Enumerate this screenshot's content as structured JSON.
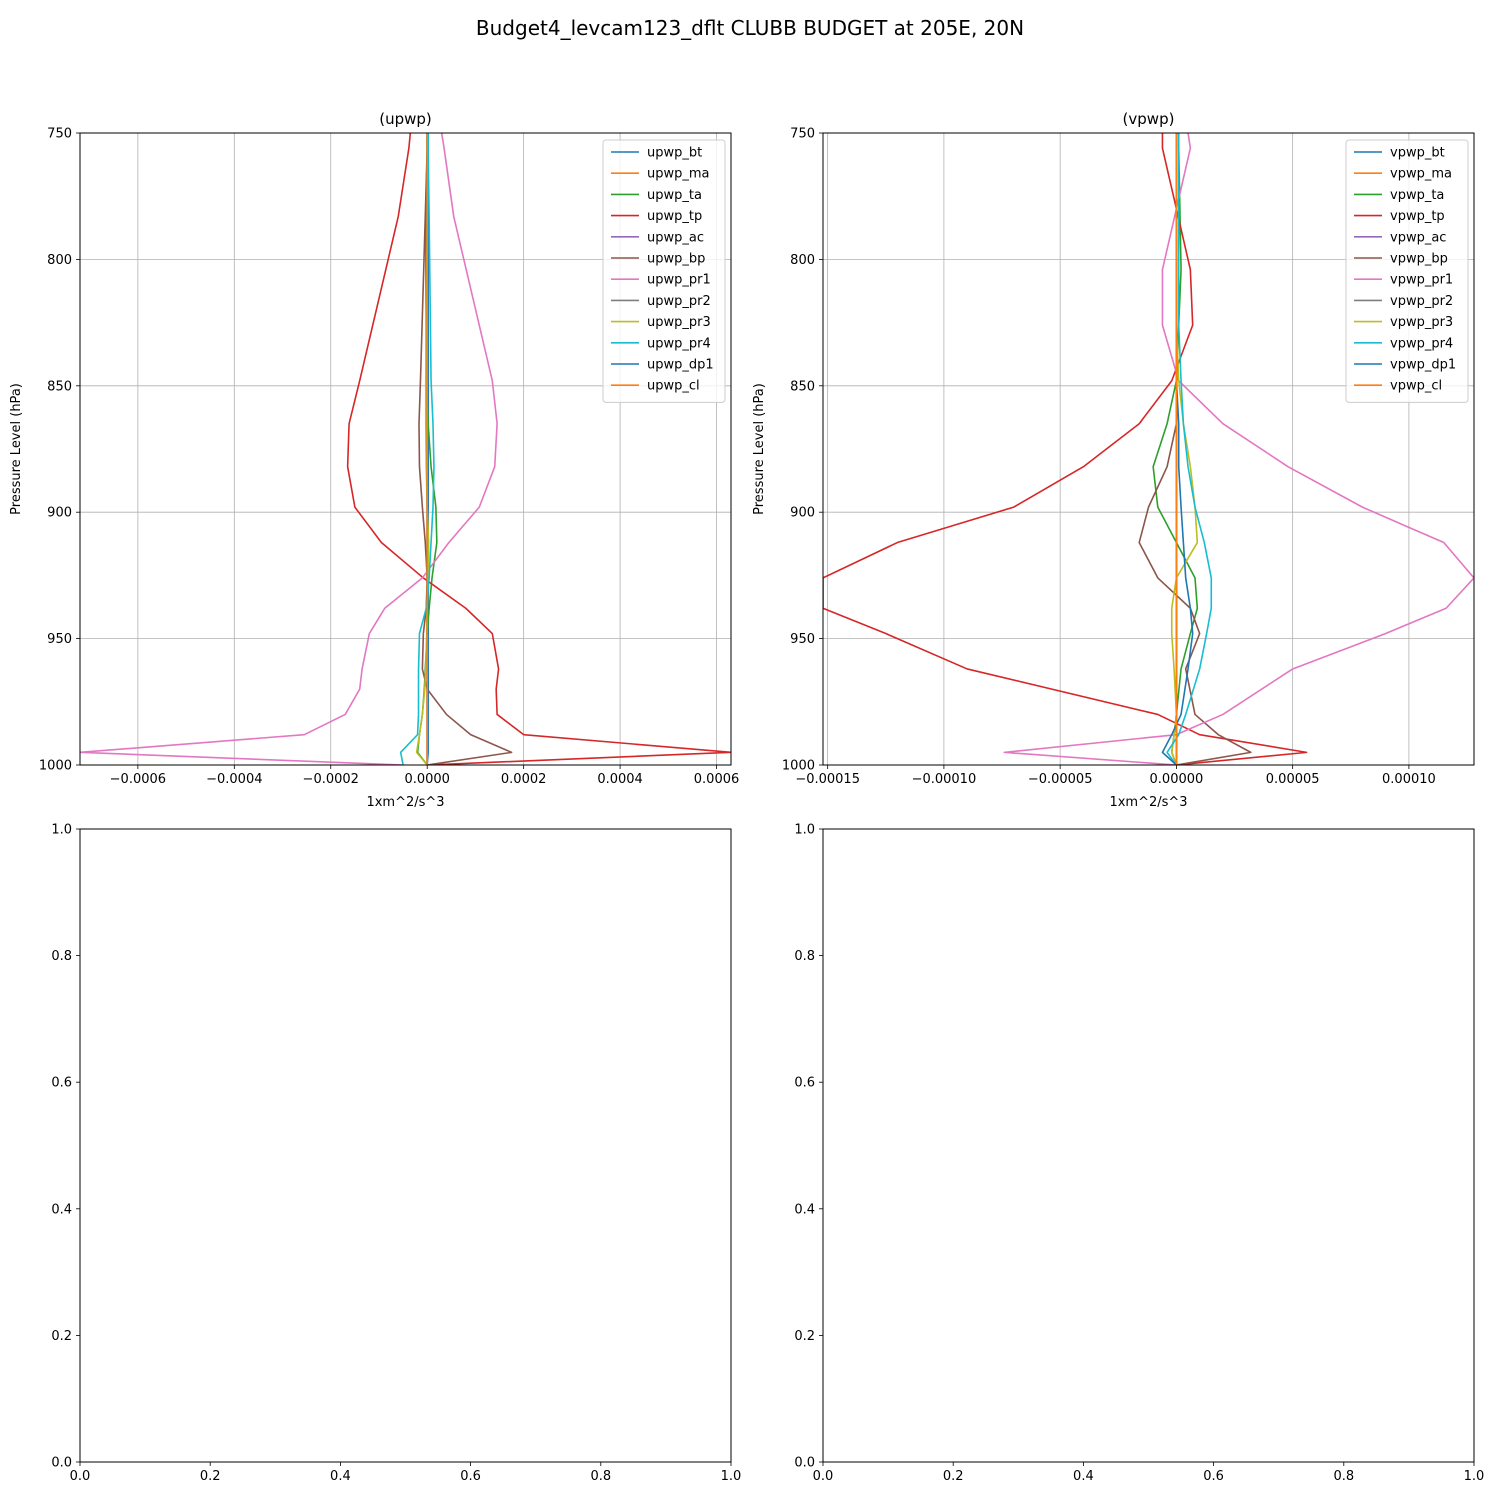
{
  "figure": {
    "suptitle": "Budget4_levcam123_dflt CLUBB BUDGET at 205E, 20N"
  },
  "colors": {
    "bt": "#1f77b4",
    "ma": "#ff7f0e",
    "ta": "#2ca02c",
    "tp": "#d62728",
    "ac": "#9467bd",
    "bp": "#8c564b",
    "pr1": "#e377c2",
    "pr2": "#7f7f7f",
    "pr3": "#bcbd22",
    "pr4": "#17becf",
    "dp1": "#1f77b4",
    "cl": "#ff7f0e"
  },
  "chart_data": [
    {
      "type": "line",
      "title": "(upwp)",
      "xlabel": "1xm^2/s^3",
      "ylabel": "Pressure Level (hPa)",
      "xlim": [
        -0.00072,
        0.00063
      ],
      "ylim": [
        1000,
        750
      ],
      "y_inverted": true,
      "xticks": [
        -0.0006,
        -0.0004,
        -0.0002,
        0.0,
        0.0002,
        0.0004,
        0.0006
      ],
      "xtick_labels": [
        "−0.0006",
        "−0.0004",
        "−0.0002",
        "0.0000",
        "0.0002",
        "0.0004",
        "0.0006"
      ],
      "yticks": [
        750,
        800,
        850,
        900,
        950,
        1000
      ],
      "ytick_labels": [
        "750",
        "800",
        "850",
        "900",
        "950",
        "1000"
      ],
      "grid": true,
      "legend_position": "top-right",
      "y": [
        750,
        756,
        783,
        848,
        865,
        882,
        898,
        912,
        926,
        938,
        948,
        962,
        970,
        980,
        988,
        995,
        1000
      ],
      "series": [
        {
          "name": "upwp_bt",
          "key": "bt",
          "values": [
            2e-06,
            2e-06,
            2e-06,
            2e-06,
            2e-06,
            2e-06,
            2e-06,
            2e-06,
            2e-06,
            2e-06,
            2e-06,
            2e-06,
            2e-06,
            2e-06,
            2e-06,
            2e-06,
            0.0
          ]
        },
        {
          "name": "upwp_ma",
          "key": "ma",
          "values": [
            0.0,
            0.0,
            0.0,
            0.0,
            0.0,
            0.0,
            0.0,
            0.0,
            0.0,
            0.0,
            0.0,
            0.0,
            0.0,
            0.0,
            0.0,
            0.0,
            0.0
          ]
        },
        {
          "name": "upwp_ta",
          "key": "ta",
          "values": [
            0.0,
            0.0,
            -3e-06,
            -2e-06,
            2e-06,
            8e-06,
            1.8e-05,
            2e-05,
            1e-05,
            4e-06,
            0.0,
            -4e-06,
            -6e-06,
            -1e-05,
            -1.6e-05,
            -2e-05,
            0.0
          ]
        },
        {
          "name": "upwp_tp",
          "key": "tp",
          "values": [
            -3.5e-05,
            -3.8e-05,
            -6e-05,
            -0.00014,
            -0.000162,
            -0.000165,
            -0.00015,
            -9.5e-05,
            -8e-06,
            8e-05,
            0.000135,
            0.000148,
            0.000143,
            0.000145,
            0.0002,
            0.00063,
            0.0
          ]
        },
        {
          "name": "upwp_ac",
          "key": "ac",
          "values": [
            0.0,
            0.0,
            0.0,
            0.0,
            0.0,
            0.0,
            0.0,
            0.0,
            0.0,
            0.0,
            0.0,
            0.0,
            0.0,
            0.0,
            0.0,
            0.0,
            0.0
          ]
        },
        {
          "name": "upwp_bp",
          "key": "bp",
          "values": [
            0.0,
            0.0,
            -4e-06,
            -1.4e-05,
            -1.7e-05,
            -1.6e-05,
            -1e-05,
            -4e-06,
            0.0,
            -2e-06,
            -8e-06,
            -1e-05,
            0.0,
            4e-05,
            9e-05,
            0.000175,
            0.0
          ]
        },
        {
          "name": "upwp_pr1",
          "key": "pr1",
          "values": [
            3e-05,
            3.5e-05,
            5.5e-05,
            0.000135,
            0.000145,
            0.00014,
            0.000108,
            4.5e-05,
            -1e-05,
            -8.8e-05,
            -0.00012,
            -0.000135,
            -0.00014,
            -0.00017,
            -0.000255,
            -0.00072,
            -5e-05
          ]
        },
        {
          "name": "upwp_pr2",
          "key": "pr2",
          "values": [
            0.0,
            0.0,
            0.0,
            0.0,
            0.0,
            0.0,
            0.0,
            0.0,
            0.0,
            0.0,
            0.0,
            0.0,
            0.0,
            0.0,
            0.0,
            0.0,
            0.0
          ]
        },
        {
          "name": "upwp_pr3",
          "key": "pr3",
          "values": [
            0.0,
            0.0,
            0.0,
            -3e-06,
            -3e-06,
            -2e-06,
            0.0,
            3e-06,
            2e-06,
            0.0,
            -1e-06,
            -3e-06,
            -5e-06,
            -1e-05,
            -1.6e-05,
            -2.2e-05,
            0.0
          ]
        },
        {
          "name": "upwp_pr4",
          "key": "pr4",
          "values": [
            2e-06,
            2e-06,
            4e-06,
            8e-06,
            1.2e-05,
            1.4e-05,
            1.2e-05,
            8e-06,
            4e-06,
            -2e-06,
            -1.6e-05,
            -1.8e-05,
            -1.8e-05,
            -1.8e-05,
            -2e-05,
            -5.5e-05,
            -5e-05
          ]
        },
        {
          "name": "upwp_dp1",
          "key": "dp1",
          "values": [
            0.0,
            0.0,
            0.0,
            0.0,
            0.0,
            0.0,
            0.0,
            0.0,
            0.0,
            0.0,
            0.0,
            0.0,
            0.0,
            0.0,
            0.0,
            0.0,
            0.0
          ]
        },
        {
          "name": "upwp_cl",
          "key": "cl",
          "values": [
            0.0,
            0.0,
            0.0,
            0.0,
            0.0,
            0.0,
            0.0,
            0.0,
            0.0,
            0.0,
            0.0,
            0.0,
            0.0,
            0.0,
            0.0,
            0.0,
            0.0
          ]
        }
      ]
    },
    {
      "type": "line",
      "title": "(vpwp)",
      "xlabel": "1xm^2/s^3",
      "ylabel": "Pressure Level (hPa)",
      "xlim": [
        -0.000152,
        0.000128
      ],
      "ylim": [
        1000,
        750
      ],
      "y_inverted": true,
      "xticks": [
        -0.00015,
        -0.0001,
        -5e-05,
        0.0,
        5e-05,
        0.0001
      ],
      "xtick_labels": [
        "−0.00015",
        "−0.00010",
        "−0.00005",
        "0.00000",
        "0.00005",
        "0.00010"
      ],
      "yticks": [
        750,
        800,
        850,
        900,
        950,
        1000
      ],
      "ytick_labels": [
        "750",
        "800",
        "850",
        "900",
        "950",
        "1000"
      ],
      "grid": true,
      "legend_position": "top-right",
      "y": [
        750,
        756,
        804,
        826,
        848,
        865,
        882,
        898,
        912,
        926,
        938,
        948,
        962,
        980,
        988,
        995,
        1000
      ],
      "series": [
        {
          "name": "vpwp_bt",
          "key": "bt",
          "values": [
            0.0,
            0.0,
            0.0,
            0.0,
            0.0,
            0.0,
            0.0,
            0.0,
            0.0,
            0.0,
            0.0,
            0.0,
            0.0,
            0.0,
            0.0,
            0.0,
            0.0
          ]
        },
        {
          "name": "vpwp_ma",
          "key": "ma",
          "values": [
            0.0,
            0.0,
            0.0,
            0.0,
            0.0,
            0.0,
            0.0,
            0.0,
            0.0,
            0.0,
            0.0,
            0.0,
            0.0,
            0.0,
            0.0,
            0.0,
            0.0
          ]
        },
        {
          "name": "vpwp_ta",
          "key": "ta",
          "values": [
            1e-06,
            1e-06,
            2e-06,
            1e-06,
            0.0,
            -4e-06,
            -1e-05,
            -8e-06,
            0.0,
            8e-06,
            9e-06,
            6e-06,
            2e-06,
            0.0,
            -1e-06,
            -2e-06,
            0.0
          ]
        },
        {
          "name": "vpwp_tp",
          "key": "tp",
          "values": [
            -6e-06,
            -6e-06,
            6e-06,
            7e-06,
            -2e-06,
            -1.6e-05,
            -4e-05,
            -7e-05,
            -0.00012,
            -0.000152,
            -0.000152,
            -0.000125,
            -9e-05,
            -8e-06,
            1e-05,
            5.6e-05,
            0.0
          ]
        },
        {
          "name": "vpwp_ac",
          "key": "ac",
          "values": [
            0.0,
            0.0,
            0.0,
            0.0,
            0.0,
            0.0,
            0.0,
            0.0,
            0.0,
            0.0,
            0.0,
            0.0,
            0.0,
            0.0,
            0.0,
            0.0,
            0.0
          ]
        },
        {
          "name": "vpwp_bp",
          "key": "bp",
          "values": [
            0.0,
            0.0,
            0.0,
            0.0,
            0.0,
            0.0,
            -4e-06,
            -1.2e-05,
            -1.6e-05,
            -8e-06,
            6e-06,
            1e-05,
            4e-06,
            8e-06,
            1.8e-05,
            3.2e-05,
            0.0
          ]
        },
        {
          "name": "vpwp_pr1",
          "key": "pr1",
          "values": [
            5e-06,
            6e-06,
            -6e-06,
            -6e-06,
            1e-06,
            2e-05,
            4.8e-05,
            8e-05,
            0.000115,
            0.000128,
            0.000116,
            9e-05,
            5e-05,
            2e-05,
            0.0,
            -7.4e-05,
            0.0
          ]
        },
        {
          "name": "vpwp_pr2",
          "key": "pr2",
          "values": [
            0.0,
            0.0,
            0.0,
            0.0,
            0.0,
            0.0,
            0.0,
            0.0,
            0.0,
            0.0,
            0.0,
            0.0,
            0.0,
            0.0,
            0.0,
            0.0,
            0.0
          ]
        },
        {
          "name": "vpwp_pr3",
          "key": "pr3",
          "values": [
            0.0,
            0.0,
            0.0,
            0.0,
            1e-06,
            3e-06,
            6e-06,
            8e-06,
            9e-06,
            0.0,
            -2e-06,
            -2e-06,
            -1e-06,
            0.0,
            -1e-06,
            -2e-06,
            0.0
          ]
        },
        {
          "name": "vpwp_pr4",
          "key": "pr4",
          "values": [
            1e-06,
            1e-06,
            1e-06,
            1e-06,
            2e-06,
            3e-06,
            5e-06,
            8e-06,
            1.2e-05,
            1.5e-05,
            1.5e-05,
            1.3e-05,
            1e-05,
            4e-06,
            1e-06,
            -4e-06,
            0.0
          ]
        },
        {
          "name": "vpwp_dp1",
          "key": "dp1",
          "values": [
            0.0,
            0.0,
            0.0,
            0.0,
            0.0,
            1e-06,
            1e-06,
            2e-06,
            3e-06,
            4e-06,
            6e-06,
            7e-06,
            5e-06,
            2e-06,
            -2e-06,
            -6e-06,
            0.0
          ]
        },
        {
          "name": "vpwp_cl",
          "key": "cl",
          "values": [
            0.0,
            0.0,
            0.0,
            0.0,
            0.0,
            0.0,
            0.0,
            0.0,
            0.0,
            0.0,
            0.0,
            0.0,
            0.0,
            0.0,
            0.0,
            0.0,
            0.0
          ]
        }
      ]
    },
    {
      "type": "line",
      "title": "",
      "empty": true,
      "xlim": [
        0,
        1
      ],
      "ylim": [
        0,
        1
      ],
      "xticks": [
        0,
        0.2,
        0.4,
        0.6,
        0.8,
        1.0
      ],
      "xtick_labels": [
        "0.0",
        "0.2",
        "0.4",
        "0.6",
        "0.8",
        "1.0"
      ],
      "yticks": [
        0,
        0.2,
        0.4,
        0.6,
        0.8,
        1.0
      ],
      "ytick_labels": [
        "0.0",
        "0.2",
        "0.4",
        "0.6",
        "0.8",
        "1.0"
      ],
      "grid": false
    },
    {
      "type": "line",
      "title": "",
      "empty": true,
      "xlim": [
        0,
        1
      ],
      "ylim": [
        0,
        1
      ],
      "xticks": [
        0,
        0.2,
        0.4,
        0.6,
        0.8,
        1.0
      ],
      "xtick_labels": [
        "0.0",
        "0.2",
        "0.4",
        "0.6",
        "0.8",
        "1.0"
      ],
      "yticks": [
        0,
        0.2,
        0.4,
        0.6,
        0.8,
        1.0
      ],
      "ytick_labels": [
        "0.0",
        "0.2",
        "0.4",
        "0.6",
        "0.8",
        "1.0"
      ],
      "grid": false
    }
  ]
}
